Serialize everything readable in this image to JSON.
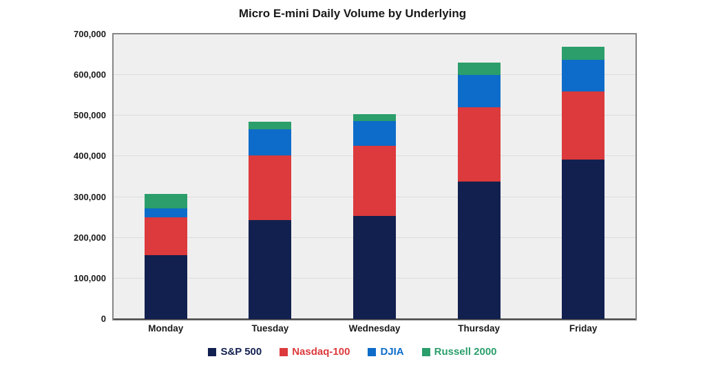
{
  "chart_data": {
    "type": "bar",
    "stacked": true,
    "title": "Micro E-mini Daily Volume by Underlying",
    "categories": [
      "Monday",
      "Tuesday",
      "Wednesday",
      "Thursday",
      "Friday"
    ],
    "series": [
      {
        "name": "S&P 500",
        "color": "#12204f",
        "values": [
          158000,
          244000,
          253000,
          338000,
          393000
        ]
      },
      {
        "name": "Nasdaq-100",
        "color": "#dc3a3c",
        "values": [
          92000,
          159000,
          173000,
          182000,
          167000
        ]
      },
      {
        "name": "DJIA",
        "color": "#0d6cc9",
        "values": [
          23000,
          63000,
          61000,
          81000,
          78000
        ]
      },
      {
        "name": "Russell 2000",
        "color": "#2b9e6b",
        "values": [
          35000,
          20000,
          17000,
          30000,
          32000
        ]
      }
    ],
    "stack_totals": [
      308000,
      486000,
      504000,
      631000,
      670000
    ],
    "ylim": [
      0,
      700000
    ],
    "ytick_step": 100000,
    "ytick_labels": [
      "0",
      "100,000",
      "200,000",
      "300,000",
      "400,000",
      "500,000",
      "600,000",
      "700,000"
    ],
    "xlabel": "",
    "ylabel": "",
    "grid": "horizontal",
    "legend_position": "bottom",
    "colors": {
      "plot_background": "#f0efef",
      "gridline": "#dcdcdc",
      "plot_border": "#858585",
      "axis_line": "#4a4a4a",
      "tick_text": "#1a1a1a"
    }
  }
}
